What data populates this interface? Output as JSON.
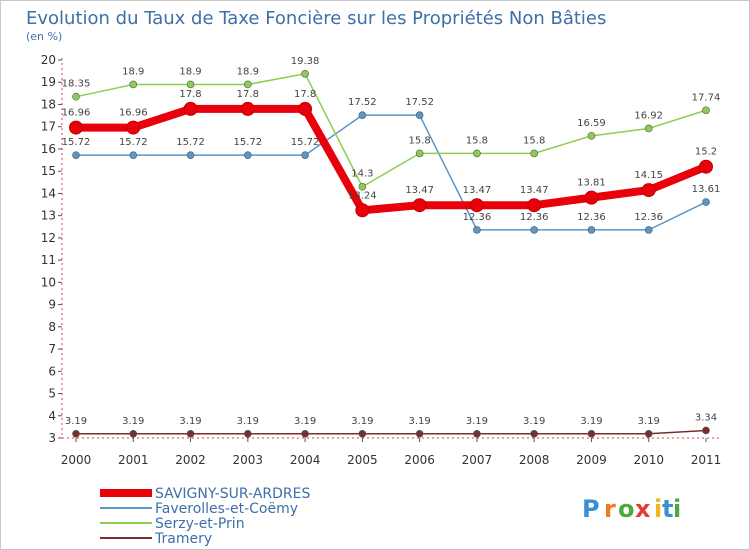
{
  "chart_data": {
    "type": "line",
    "title": "Evolution du Taux de Taxe Foncière sur les Propriétés Non Bâties",
    "subtitle": "(en %)",
    "xlabel": "",
    "ylabel": "",
    "x": [
      "2000",
      "2001",
      "2002",
      "2003",
      "2004",
      "2005",
      "2006",
      "2007",
      "2008",
      "2009",
      "2010",
      "2011"
    ],
    "ylim": [
      3,
      20
    ],
    "yticks": [
      3,
      4,
      5,
      6,
      7,
      8,
      9,
      10,
      11,
      12,
      13,
      14,
      15,
      16,
      17,
      18,
      19,
      20
    ],
    "grid": false,
    "legend_position": "bottom-left",
    "series": [
      {
        "name": "Tramery",
        "color": "#7a2f2f",
        "width": 1.5,
        "values": [
          3.19,
          3.19,
          3.19,
          3.19,
          3.19,
          3.19,
          3.19,
          3.19,
          3.19,
          3.19,
          3.19,
          3.34
        ],
        "labels": [
          "3.19",
          "3.19",
          "3.19",
          "3.19",
          "3.19",
          "3.19",
          "3.19",
          "3.19",
          "3.19",
          "3.19",
          "3.19",
          "3.34"
        ]
      },
      {
        "name": "Faverolles-et-Coëmy",
        "color": "#5b96c8",
        "width": 1.5,
        "values": [
          15.72,
          15.72,
          15.72,
          15.72,
          15.72,
          17.52,
          17.52,
          12.36,
          12.36,
          12.36,
          12.36,
          13.61
        ],
        "labels": [
          "15.72",
          "15.72",
          "15.72",
          "15.72",
          "15.72",
          "17.52",
          "17.52",
          "12.36",
          "12.36",
          "12.36",
          "12.36",
          "13.61"
        ]
      },
      {
        "name": "Serzy-et-Prin",
        "color": "#8ccf4f",
        "width": 1.5,
        "values": [
          18.35,
          18.9,
          18.9,
          18.9,
          19.38,
          14.3,
          15.8,
          15.8,
          15.8,
          16.59,
          16.92,
          17.74
        ],
        "labels": [
          "18.35",
          "18.9",
          "18.9",
          "18.9",
          "19.38",
          "14.3",
          "15.8",
          "15.8",
          "15.8",
          "16.59",
          "16.92",
          "17.74"
        ]
      },
      {
        "name": "SAVIGNY-SUR-ARDRES",
        "color": "#e8000b",
        "width": 8,
        "values": [
          16.96,
          16.96,
          17.8,
          17.8,
          17.8,
          13.24,
          13.47,
          13.47,
          13.47,
          13.81,
          14.15,
          15.2
        ],
        "labels": [
          "16.96",
          "16.96",
          "17.8",
          "17.8",
          "17.8",
          "13.24",
          "13.47",
          "13.47",
          "13.47",
          "13.81",
          "14.15",
          "15.2"
        ]
      }
    ],
    "legend_order": [
      "SAVIGNY-SUR-ARDRES",
      "Faverolles-et-Coëmy",
      "Serzy-et-Prin",
      "Tramery"
    ]
  },
  "brand": {
    "letters": [
      "P",
      "r",
      "o",
      "x",
      "i",
      "t",
      "i"
    ],
    "colors": [
      "#3a8fd6",
      "#f07c1b",
      "#4aaa3c",
      "#e63b2e",
      "#f0b81b",
      "#3a8fd6",
      "#4aaa3c"
    ]
  }
}
